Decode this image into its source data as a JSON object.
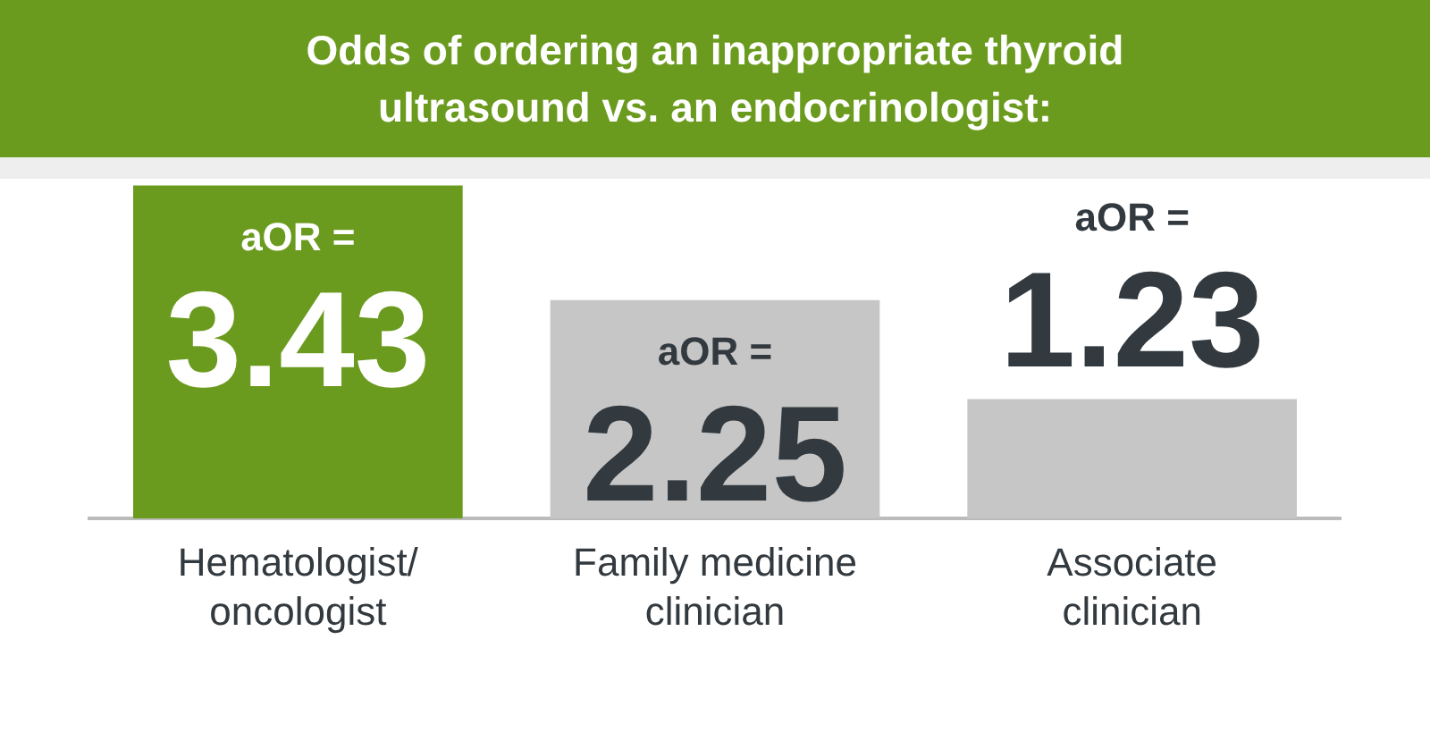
{
  "chart_data": {
    "type": "bar",
    "title": "Odds of ordering an inappropriate thyroid ultrasound vs. an endocrinologist:",
    "categories": [
      "Hematologist/oncologist",
      "Family medicine clinician",
      "Associate clinician"
    ],
    "values": [
      3.43,
      2.25,
      1.23
    ],
    "colors": [
      "#6b9b1e",
      "#c6c6c6",
      "#c6c6c6"
    ],
    "value_labels": [
      "aOR = 3.43",
      "aOR = 2.25",
      "aOR = 1.23"
    ],
    "tick_labels": "x",
    "grid": false,
    "legend": false
  }
}
